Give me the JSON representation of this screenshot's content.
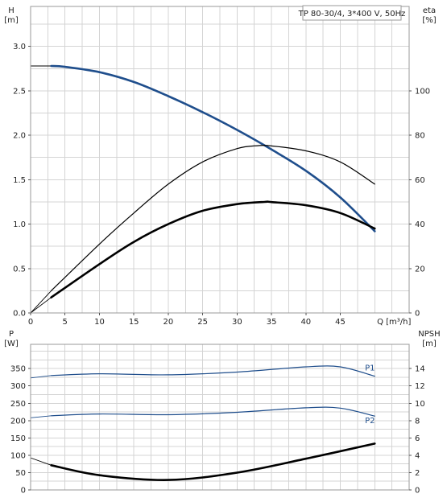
{
  "chart_data": [
    {
      "type": "line",
      "title": "TP 80-30/4, 3*400 V, 50Hz",
      "xlabel": "Q [m³/h]",
      "ylabel": "H\n[m]",
      "ylabel_right": "eta\n[%]",
      "ylabel_lines": [
        "H",
        "[m]"
      ],
      "ylabel_right_lines": [
        "eta",
        "[%]"
      ],
      "xlim": [
        0,
        50
      ],
      "ylim": [
        0,
        3.0
      ],
      "ylim_right": [
        0,
        120
      ],
      "x_ticks": [
        "0",
        "5",
        "10",
        "15",
        "20",
        "25",
        "30",
        "35",
        "40",
        "45"
      ],
      "y_ticks": [
        "0.0",
        "0.5",
        "1.0",
        "1.5",
        "2.0",
        "2.5",
        "3.0"
      ],
      "y_ticks_right": [
        "0",
        "20",
        "40",
        "60",
        "80",
        "100"
      ],
      "grid": true,
      "series": [
        {
          "axis": "left",
          "color": "#1f4e8c",
          "style": "thick",
          "x": [
            3,
            5,
            10,
            15,
            20,
            25,
            30,
            35,
            40,
            45,
            50
          ],
          "y": [
            2.78,
            2.77,
            2.71,
            2.6,
            2.44,
            2.26,
            2.06,
            1.84,
            1.6,
            1.3,
            0.92
          ]
        },
        {
          "axis": "right",
          "color": "#000000",
          "style": "thin",
          "x": [
            3,
            10,
            15,
            20,
            25,
            30,
            33,
            35,
            40,
            45,
            50
          ],
          "y": [
            10,
            31,
            45,
            58,
            68,
            74,
            75.3,
            75.2,
            73,
            68,
            58
          ]
        },
        {
          "axis": "right",
          "color": "#000000",
          "style": "thick",
          "x": [
            3,
            10,
            15,
            20,
            25,
            30,
            34,
            35,
            40,
            45,
            50
          ],
          "y": [
            7,
            22,
            32,
            40,
            46,
            49,
            50,
            49.9,
            48.5,
            45,
            38
          ]
        }
      ],
      "extensions": [
        {
          "axis": "left",
          "color": "#000000",
          "x": [
            0,
            3
          ],
          "y": [
            2.78,
            2.78
          ]
        },
        {
          "axis": "right",
          "color": "#000000",
          "x": [
            0,
            3
          ],
          "y": [
            0,
            10
          ]
        },
        {
          "axis": "right",
          "color": "#000000",
          "x": [
            0,
            3
          ],
          "y": [
            0,
            7
          ]
        }
      ]
    },
    {
      "type": "line",
      "xlabel": "",
      "ylabel": "P\n[W]",
      "ylabel_right": "NPSH\n[m]",
      "ylabel_lines": [
        "P",
        "[W]"
      ],
      "ylabel_right_lines": [
        "NPSH",
        "[m]"
      ],
      "xlim": [
        0,
        50
      ],
      "ylim": [
        0,
        400
      ],
      "ylim_right": [
        0,
        16
      ],
      "y_ticks": [
        "0",
        "50",
        "100",
        "150",
        "200",
        "250",
        "300",
        "350"
      ],
      "y_ticks_right": [
        "0",
        "2",
        "4",
        "6",
        "8",
        "10",
        "12",
        "14"
      ],
      "grid": true,
      "series": [
        {
          "name": "P1",
          "axis": "left",
          "color": "#1f4e8c",
          "style": "thin",
          "x": [
            3,
            10,
            20,
            30,
            40,
            45,
            50
          ],
          "y": [
            330,
            335,
            332,
            340,
            355,
            355,
            328
          ]
        },
        {
          "name": "P2",
          "axis": "left",
          "color": "#1f4e8c",
          "style": "thin",
          "x": [
            3,
            10,
            20,
            30,
            40,
            45,
            50
          ],
          "y": [
            214,
            219,
            217,
            224,
            237,
            236,
            213
          ]
        },
        {
          "axis": "right",
          "color": "#000000",
          "style": "thick",
          "x": [
            3,
            10,
            20,
            30,
            40,
            50
          ],
          "y": [
            2.85,
            1.7,
            1.15,
            2.0,
            3.6,
            5.35
          ]
        }
      ],
      "extensions": [
        {
          "axis": "left",
          "color": "#1f4e8c",
          "x": [
            0,
            3
          ],
          "y": [
            323,
            330
          ]
        },
        {
          "axis": "left",
          "color": "#1f4e8c",
          "x": [
            0,
            3
          ],
          "y": [
            208,
            214
          ]
        },
        {
          "axis": "right",
          "color": "#000000",
          "x": [
            0,
            3
          ],
          "y": [
            3.7,
            2.85
          ]
        }
      ],
      "series_labels": [
        {
          "text": "P1",
          "x": 49.3,
          "y": 345
        },
        {
          "text": "P2",
          "x": 49.3,
          "y": 193
        }
      ]
    }
  ]
}
